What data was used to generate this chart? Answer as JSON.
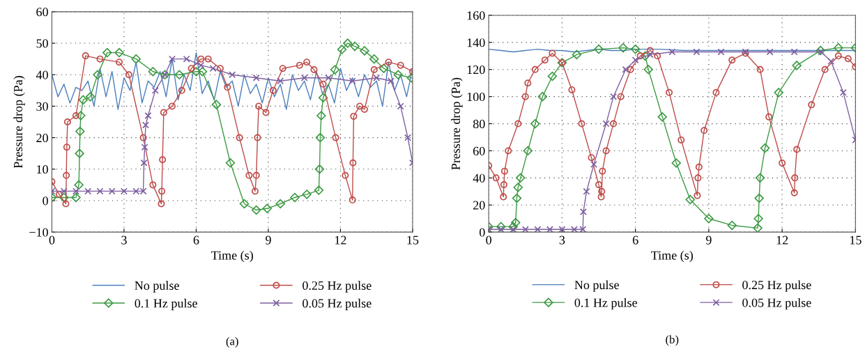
{
  "chart_data": [
    {
      "type": "line",
      "xlabel": "Time (s)",
      "ylabel": "Pressure drop (Pa)",
      "annotations": [
        "(a)"
      ],
      "xlim": [
        0,
        15
      ],
      "xticks": [
        0,
        3,
        6,
        9,
        12,
        15
      ],
      "ylim": [
        -10,
        60
      ],
      "yticks": [
        {
          "value": -10,
          "label": "−10"
        },
        0,
        10,
        20,
        30,
        40,
        50,
        60
      ],
      "grid": true,
      "legend": "bottom",
      "line_style": "solid",
      "series": [
        {
          "name": "No pulse",
          "color": "#4a7ebb",
          "marker": "none",
          "x": [
            0,
            0.25,
            0.5,
            0.75,
            1,
            1.25,
            1.5,
            1.75,
            2,
            2.25,
            2.5,
            2.75,
            3,
            3.25,
            3.5,
            3.75,
            4,
            4.25,
            4.5,
            4.75,
            5,
            5.25,
            5.5,
            5.75,
            6,
            6.25,
            6.5,
            6.75,
            7,
            7.25,
            7.5,
            7.75,
            8,
            8.25,
            8.5,
            8.75,
            9,
            9.25,
            9.5,
            9.75,
            10,
            10.25,
            10.5,
            10.75,
            11,
            11.25,
            11.5,
            11.75,
            12,
            12.25,
            12.5,
            12.75,
            13,
            13.25,
            13.5,
            13.75,
            14,
            14.25,
            14.5,
            14.75,
            15
          ],
          "values": [
            40,
            33,
            37,
            31,
            36,
            35,
            38,
            30,
            42,
            33,
            41,
            29,
            39,
            35,
            44,
            31,
            38,
            36,
            41,
            33,
            45,
            32,
            40,
            35,
            47,
            34,
            38,
            32,
            41,
            36,
            38,
            30,
            40,
            34,
            37,
            31,
            39,
            33,
            37,
            29,
            40,
            35,
            38,
            32,
            41,
            34,
            37,
            31,
            42,
            35,
            39,
            33,
            40,
            36,
            38,
            30,
            44,
            35,
            40,
            33,
            42
          ]
        },
        {
          "name": "0.1 Hz pulse",
          "color": "#3c9a43",
          "marker": "diamond",
          "x": [
            0,
            0.5,
            1.0,
            1.12,
            1.15,
            1.17,
            1.2,
            1.3,
            1.6,
            1.9,
            2.3,
            2.8,
            3.5,
            4.2,
            4.7,
            5.3,
            6.0,
            6.26,
            6.84,
            7.42,
            8.0,
            8.5,
            8.95,
            9.5,
            10.1,
            10.6,
            11.1,
            11.13,
            11.16,
            11.2,
            11.28,
            11.77,
            12.06,
            12.3,
            12.6,
            13.0,
            13.4,
            13.8,
            14.4,
            14.95
          ],
          "values": [
            1,
            1,
            1,
            5,
            15,
            22,
            27,
            32,
            33,
            40,
            47,
            47,
            45,
            41,
            40,
            40,
            41,
            41,
            30.5,
            12,
            -1,
            -3,
            -2.5,
            -1,
            1,
            2,
            3.3,
            10,
            20,
            27,
            32.7,
            41.6,
            48,
            50,
            49,
            47.6,
            45,
            42,
            40,
            39
          ]
        },
        {
          "name": "0.25 Hz pulse",
          "color": "#be4b48",
          "marker": "circle",
          "x": [
            0,
            0.3,
            0.58,
            0.6,
            0.62,
            0.65,
            1.0,
            1.4,
            2.0,
            2.8,
            3.2,
            3.8,
            4.2,
            4.55,
            4.57,
            4.6,
            4.65,
            5.0,
            5.4,
            5.8,
            6.2,
            6.5,
            7.0,
            7.3,
            7.8,
            8.2,
            8.45,
            8.5,
            8.55,
            8.6,
            8.9,
            9.2,
            9.6,
            10.3,
            10.6,
            10.9,
            11.28,
            11.8,
            12.2,
            12.5,
            12.52,
            12.55,
            12.8,
            13.0,
            13.4,
            14.0,
            14.5,
            15
          ],
          "values": [
            6,
            2,
            -1,
            8,
            17,
            25,
            27,
            46,
            45,
            44,
            40,
            20,
            5,
            -1,
            3,
            13,
            28,
            30,
            35,
            42,
            45,
            45,
            42,
            36,
            20,
            8,
            3,
            8,
            20,
            30,
            28,
            35,
            42,
            43,
            44,
            41.6,
            37,
            20,
            8,
            0.2,
            12,
            26.8,
            30,
            29,
            41.6,
            44,
            43,
            41
          ]
        },
        {
          "name": "0.05 Hz pulse",
          "color": "#7d5fa0",
          "marker": "cross",
          "x": [
            0,
            0.5,
            1,
            1.5,
            2,
            2.5,
            3,
            3.5,
            3.8,
            3.83,
            3.86,
            3.9,
            4.0,
            4.3,
            4.7,
            5.0,
            5.6,
            6.2,
            6.7,
            7.5,
            8.5,
            9.5,
            10.5,
            11.5,
            12.5,
            13.5,
            14.1,
            14.5,
            14.8,
            15
          ],
          "values": [
            3,
            3,
            3,
            3,
            3,
            3,
            3,
            3,
            3,
            12,
            17,
            24,
            27,
            35,
            40,
            45,
            45,
            43,
            42,
            40,
            39,
            38,
            39,
            39,
            38,
            39,
            38,
            30,
            20,
            12
          ]
        }
      ]
    },
    {
      "type": "line",
      "xlabel": "Time (s)",
      "ylabel": "Pressure drop (Pa)",
      "annotations": [
        "(b)"
      ],
      "xlim": [
        0,
        15
      ],
      "xticks": [
        0,
        3,
        6,
        9,
        12,
        15
      ],
      "ylim": [
        0,
        160
      ],
      "yticks": [
        0,
        20,
        40,
        60,
        80,
        100,
        120,
        140,
        160
      ],
      "grid": true,
      "legend": "bottom",
      "line_style": "solid",
      "series": [
        {
          "name": "No pulse",
          "color": "#4a7ebb",
          "marker": "none",
          "x": [
            0,
            0.5,
            1,
            1.5,
            2,
            2.5,
            3,
            3.5,
            4,
            4.5,
            5,
            5.5,
            6,
            6.5,
            7,
            8,
            9,
            10,
            11,
            12,
            13,
            14,
            15
          ],
          "values": [
            135,
            134,
            133,
            134,
            135,
            134,
            134,
            133,
            134,
            135,
            134,
            134,
            135,
            135,
            135,
            134,
            134,
            134,
            134,
            134,
            134,
            134,
            134
          ]
        },
        {
          "name": "0.1 Hz pulse",
          "color": "#3c9a43",
          "marker": "diamond",
          "x": [
            0,
            0.5,
            1.0,
            1.1,
            1.15,
            1.2,
            1.3,
            1.6,
            1.9,
            2.2,
            2.6,
            3.0,
            3.6,
            4.5,
            5.5,
            6.0,
            6.4,
            6.53,
            7.1,
            7.67,
            8.24,
            9.0,
            9.95,
            11.0,
            11.03,
            11.06,
            11.1,
            11.3,
            11.86,
            12.6,
            13.57,
            14.3,
            15
          ],
          "values": [
            4,
            4,
            4,
            7,
            25,
            33,
            40,
            60,
            80,
            100,
            115,
            125,
            131,
            135,
            136,
            135,
            130,
            120,
            85,
            51,
            24,
            10,
            5,
            3,
            10,
            25,
            40,
            62,
            103,
            123,
            134,
            136,
            136
          ]
        },
        {
          "name": "0.25 Hz pulse",
          "color": "#be4b48",
          "marker": "circle",
          "x": [
            0,
            0.3,
            0.6,
            0.62,
            0.65,
            0.8,
            1.2,
            1.5,
            1.6,
            1.9,
            2.3,
            2.6,
            3.0,
            3.4,
            3.8,
            4.2,
            4.5,
            4.6,
            4.62,
            4.65,
            4.8,
            5.1,
            5.4,
            5.8,
            6.2,
            6.6,
            6.9,
            7.38,
            7.87,
            8.53,
            8.56,
            8.6,
            8.81,
            9.3,
            9.95,
            10.5,
            11.1,
            11.46,
            12.0,
            12.5,
            12.52,
            12.6,
            13.2,
            13.75,
            14.3,
            14.7,
            15
          ],
          "values": [
            49,
            40,
            26,
            35,
            45,
            60,
            80,
            100,
            110,
            120,
            127,
            132,
            125,
            105,
            80,
            55,
            35,
            26,
            30,
            45,
            60,
            80,
            100,
            120,
            130,
            134,
            130,
            103,
            68,
            27,
            40,
            48,
            75,
            103,
            127,
            132,
            120,
            85,
            51,
            29,
            40,
            61,
            94,
            120,
            130,
            128,
            122
          ]
        },
        {
          "name": "0.05 Hz pulse",
          "color": "#7d5fa0",
          "marker": "cross",
          "x": [
            0,
            0.5,
            1,
            1.5,
            2,
            2.5,
            3,
            3.5,
            3.85,
            3.87,
            4.0,
            4.3,
            4.8,
            5.1,
            5.6,
            6.0,
            6.6,
            7.5,
            8.5,
            9.5,
            10.5,
            11.5,
            12.5,
            13.6,
            14.0,
            14.5,
            15
          ],
          "values": [
            2,
            2,
            2,
            2,
            2,
            2,
            2,
            2,
            2,
            15,
            30,
            50,
            80,
            100,
            120,
            127,
            131,
            133,
            133,
            133,
            133,
            133,
            133,
            133,
            126,
            103,
            68
          ]
        }
      ]
    }
  ]
}
